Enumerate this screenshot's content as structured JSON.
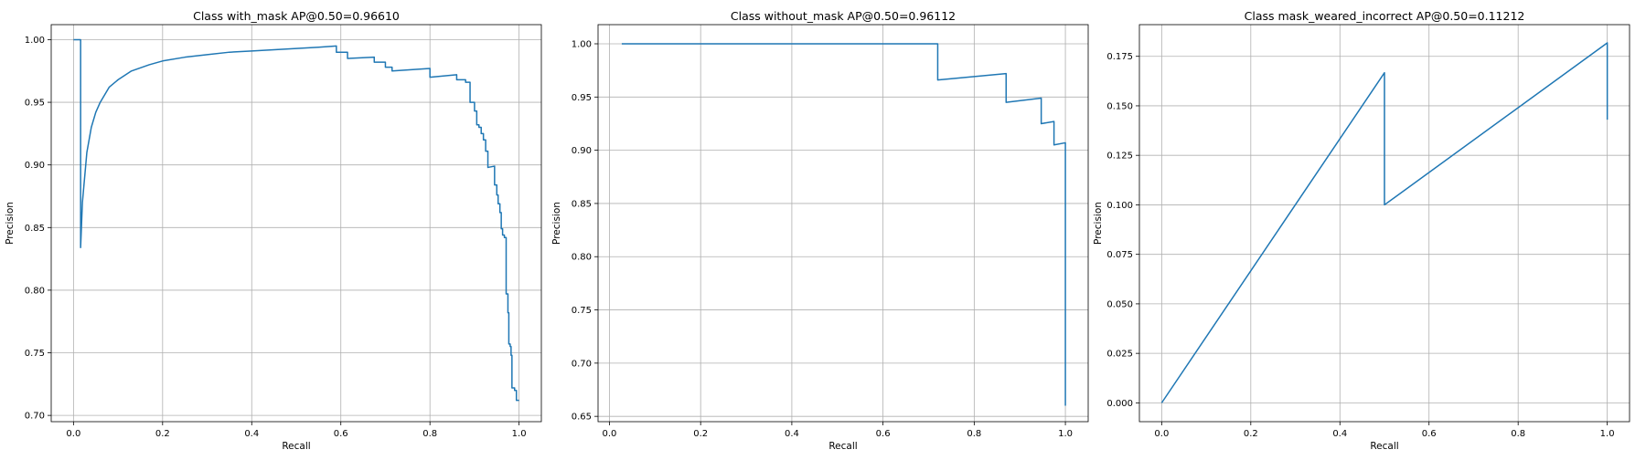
{
  "chart_data": [
    {
      "type": "line",
      "title": "Class with_mask AP@0.50=0.96610",
      "xlabel": "Recall",
      "ylabel": "Precision",
      "xlim": [
        -0.05,
        1.05
      ],
      "ylim": [
        0.695,
        1.012
      ],
      "xticks": [
        0.0,
        0.2,
        0.4,
        0.6,
        0.8,
        1.0
      ],
      "yticks": [
        0.7,
        0.75,
        0.8,
        0.85,
        0.9,
        0.95,
        1.0
      ],
      "tick_decimals": 1,
      "ytick_decimals": 2,
      "grid": true,
      "color": "#1f77b4",
      "series": [
        {
          "x": [
            0.0,
            0.016,
            0.016,
            0.016,
            0.02,
            0.025,
            0.03,
            0.04,
            0.05,
            0.06,
            0.08,
            0.1,
            0.13,
            0.17,
            0.2,
            0.25,
            0.3,
            0.35,
            0.4,
            0.45,
            0.5,
            0.55,
            0.59,
            0.59,
            0.615,
            0.615,
            0.675,
            0.675,
            0.7,
            0.7,
            0.715,
            0.715,
            0.8,
            0.8,
            0.86,
            0.86,
            0.88,
            0.88,
            0.89,
            0.89,
            0.9,
            0.9,
            0.905,
            0.905,
            0.91,
            0.91,
            0.915,
            0.915,
            0.92,
            0.92,
            0.925,
            0.925,
            0.93,
            0.93,
            0.945,
            0.945,
            0.95,
            0.95,
            0.953,
            0.953,
            0.957,
            0.957,
            0.96,
            0.96,
            0.963,
            0.963,
            0.967,
            0.967,
            0.971,
            0.971,
            0.975,
            0.975,
            0.977,
            0.977,
            0.98,
            0.98,
            0.982,
            0.982,
            0.984,
            0.984,
            0.99,
            0.99,
            0.994,
            0.994,
            1.0,
            1.0
          ],
          "y": [
            1.0,
            1.0,
            0.834,
            0.834,
            0.87,
            0.89,
            0.91,
            0.93,
            0.942,
            0.95,
            0.962,
            0.968,
            0.975,
            0.98,
            0.983,
            0.986,
            0.988,
            0.99,
            0.991,
            0.992,
            0.993,
            0.994,
            0.995,
            0.99,
            0.99,
            0.985,
            0.986,
            0.982,
            0.982,
            0.978,
            0.978,
            0.975,
            0.977,
            0.97,
            0.972,
            0.968,
            0.968,
            0.966,
            0.966,
            0.95,
            0.95,
            0.943,
            0.943,
            0.932,
            0.932,
            0.93,
            0.93,
            0.925,
            0.925,
            0.92,
            0.92,
            0.911,
            0.911,
            0.898,
            0.899,
            0.884,
            0.884,
            0.876,
            0.876,
            0.869,
            0.869,
            0.862,
            0.862,
            0.849,
            0.849,
            0.844,
            0.844,
            0.842,
            0.842,
            0.797,
            0.797,
            0.782,
            0.782,
            0.757,
            0.757,
            0.755,
            0.755,
            0.748,
            0.748,
            0.722,
            0.722,
            0.72,
            0.72,
            0.712,
            0.712,
            0.712
          ]
        }
      ]
    },
    {
      "type": "line",
      "title": "Class without_mask AP@0.50=0.96112",
      "xlabel": "Recall",
      "ylabel": "Precision",
      "xlim": [
        -0.025,
        1.05
      ],
      "ylim": [
        0.645,
        1.018
      ],
      "xticks": [
        0.0,
        0.2,
        0.4,
        0.6,
        0.8,
        1.0
      ],
      "yticks": [
        0.65,
        0.7,
        0.75,
        0.8,
        0.85,
        0.9,
        0.95,
        1.0
      ],
      "tick_decimals": 1,
      "ytick_decimals": 2,
      "grid": true,
      "color": "#1f77b4",
      "series": [
        {
          "x": [
            0.027,
            0.72,
            0.72,
            0.87,
            0.87,
            0.947,
            0.947,
            0.975,
            0.975,
            1.0,
            1.0
          ],
          "y": [
            1.0,
            1.0,
            0.966,
            0.972,
            0.945,
            0.949,
            0.925,
            0.927,
            0.905,
            0.907,
            0.66
          ]
        }
      ]
    },
    {
      "type": "line",
      "title": "Class mask_weared_incorrect AP@0.50=0.11212",
      "xlabel": "Recall",
      "ylabel": "Precision",
      "xlim": [
        -0.05,
        1.05
      ],
      "ylim": [
        -0.0095,
        0.191
      ],
      "xticks": [
        0.0,
        0.2,
        0.4,
        0.6,
        0.8,
        1.0
      ],
      "yticks": [
        0.0,
        0.025,
        0.05,
        0.075,
        0.1,
        0.125,
        0.15,
        0.175
      ],
      "tick_decimals": 1,
      "ytick_decimals": 3,
      "grid": true,
      "color": "#1f77b4",
      "series": [
        {
          "x": [
            0.0,
            0.5,
            0.5,
            1.0,
            1.0
          ],
          "y": [
            0.0,
            0.1667,
            0.1,
            0.1818,
            0.143
          ]
        }
      ]
    }
  ]
}
